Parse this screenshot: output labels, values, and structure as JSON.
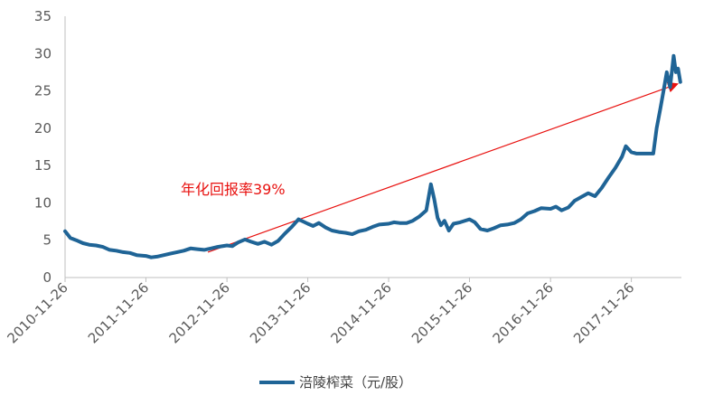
{
  "chart_data": {
    "type": "line",
    "title": "",
    "xlabel": "",
    "ylabel": "",
    "ylim": [
      0,
      35
    ],
    "yticks": [
      0,
      5,
      10,
      15,
      20,
      25,
      30,
      35
    ],
    "xticks": [
      "2010-11-26",
      "2011-11-26",
      "2012-11-26",
      "2013-11-26",
      "2014-11-26",
      "2015-11-26",
      "2016-11-26",
      "2017-11-26"
    ],
    "grid": false,
    "legend_position": "bottom",
    "colors": {
      "series": "#1f6496",
      "trend": "#e8110f"
    },
    "series": [
      {
        "name": "涪陵榨菜（元/股）",
        "points": [
          [
            "2010-11-26",
            6.2
          ],
          [
            "2010-12-20",
            5.3
          ],
          [
            "2011-01-15",
            5.0
          ],
          [
            "2011-02-15",
            4.6
          ],
          [
            "2011-03-15",
            4.4
          ],
          [
            "2011-04-15",
            4.3
          ],
          [
            "2011-05-15",
            4.1
          ],
          [
            "2011-06-15",
            3.7
          ],
          [
            "2011-07-15",
            3.6
          ],
          [
            "2011-08-15",
            3.4
          ],
          [
            "2011-09-15",
            3.3
          ],
          [
            "2011-10-15",
            3.0
          ],
          [
            "2011-11-26",
            2.9
          ],
          [
            "2011-12-20",
            2.7
          ],
          [
            "2012-01-15",
            2.8
          ],
          [
            "2012-02-15",
            3.0
          ],
          [
            "2012-03-15",
            3.2
          ],
          [
            "2012-04-15",
            3.4
          ],
          [
            "2012-05-15",
            3.6
          ],
          [
            "2012-06-15",
            3.9
          ],
          [
            "2012-07-15",
            3.8
          ],
          [
            "2012-08-15",
            3.7
          ],
          [
            "2012-09-15",
            3.9
          ],
          [
            "2012-10-15",
            4.1
          ],
          [
            "2012-11-26",
            4.3
          ],
          [
            "2012-12-20",
            4.2
          ],
          [
            "2013-01-15",
            4.7
          ],
          [
            "2013-02-15",
            5.1
          ],
          [
            "2013-03-15",
            4.8
          ],
          [
            "2013-04-15",
            4.5
          ],
          [
            "2013-05-15",
            4.8
          ],
          [
            "2013-06-15",
            4.4
          ],
          [
            "2013-07-15",
            4.9
          ],
          [
            "2013-08-15",
            5.9
          ],
          [
            "2013-09-15",
            6.8
          ],
          [
            "2013-10-15",
            7.8
          ],
          [
            "2013-11-26",
            7.2
          ],
          [
            "2013-12-20",
            6.9
          ],
          [
            "2014-01-15",
            7.3
          ],
          [
            "2014-02-15",
            6.7
          ],
          [
            "2014-03-15",
            6.3
          ],
          [
            "2014-04-15",
            6.1
          ],
          [
            "2014-05-15",
            6.0
          ],
          [
            "2014-06-15",
            5.8
          ],
          [
            "2014-07-15",
            6.2
          ],
          [
            "2014-08-15",
            6.4
          ],
          [
            "2014-09-15",
            6.8
          ],
          [
            "2014-10-15",
            7.1
          ],
          [
            "2014-11-26",
            7.2
          ],
          [
            "2014-12-20",
            7.4
          ],
          [
            "2015-01-15",
            7.3
          ],
          [
            "2015-02-15",
            7.3
          ],
          [
            "2015-03-15",
            7.6
          ],
          [
            "2015-04-15",
            8.2
          ],
          [
            "2015-05-15",
            9.0
          ],
          [
            "2015-06-05",
            12.5
          ],
          [
            "2015-06-20",
            10.5
          ],
          [
            "2015-07-05",
            8.0
          ],
          [
            "2015-07-20",
            7.0
          ],
          [
            "2015-08-05",
            7.6
          ],
          [
            "2015-08-25",
            6.3
          ],
          [
            "2015-09-15",
            7.2
          ],
          [
            "2015-10-15",
            7.4
          ],
          [
            "2015-11-26",
            7.8
          ],
          [
            "2015-12-20",
            7.4
          ],
          [
            "2016-01-15",
            6.5
          ],
          [
            "2016-02-15",
            6.3
          ],
          [
            "2016-03-15",
            6.6
          ],
          [
            "2016-04-15",
            7.0
          ],
          [
            "2016-05-15",
            7.1
          ],
          [
            "2016-06-15",
            7.3
          ],
          [
            "2016-07-15",
            7.8
          ],
          [
            "2016-08-15",
            8.6
          ],
          [
            "2016-09-15",
            8.9
          ],
          [
            "2016-10-15",
            9.3
          ],
          [
            "2016-11-26",
            9.2
          ],
          [
            "2016-12-20",
            9.5
          ],
          [
            "2017-01-15",
            9.0
          ],
          [
            "2017-02-15",
            9.4
          ],
          [
            "2017-03-15",
            10.3
          ],
          [
            "2017-04-15",
            10.8
          ],
          [
            "2017-05-15",
            11.3
          ],
          [
            "2017-06-15",
            10.9
          ],
          [
            "2017-07-15",
            12.0
          ],
          [
            "2017-08-15",
            13.4
          ],
          [
            "2017-09-15",
            14.7
          ],
          [
            "2017-10-15",
            16.2
          ],
          [
            "2017-11-01",
            17.6
          ],
          [
            "2017-11-26",
            16.8
          ],
          [
            "2017-12-20",
            16.6
          ],
          [
            "2018-01-15",
            16.6
          ],
          [
            "2018-02-15",
            16.6
          ],
          [
            "2018-03-05",
            16.6
          ],
          [
            "2018-03-20",
            20.0
          ],
          [
            "2018-04-05",
            22.5
          ],
          [
            "2018-04-20",
            25.0
          ],
          [
            "2018-05-05",
            27.5
          ],
          [
            "2018-05-20",
            25.5
          ],
          [
            "2018-06-05",
            29.7
          ],
          [
            "2018-06-15",
            27.5
          ],
          [
            "2018-06-25",
            28.0
          ],
          [
            "2018-07-05",
            26.2
          ]
        ]
      }
    ],
    "trend_line": {
      "from": [
        "2012-09-01",
        3.4
      ],
      "to": [
        "2018-06-20",
        25.9
      ]
    },
    "annotations": [
      {
        "text": "年化回报率39%"
      }
    ]
  }
}
